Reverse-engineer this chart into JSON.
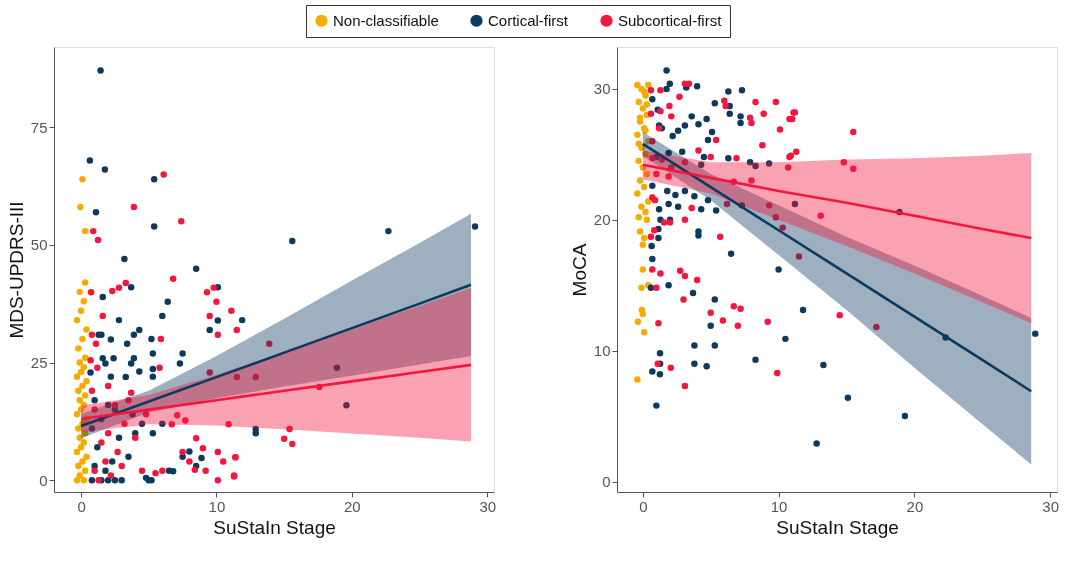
{
  "chart_data": [
    {
      "type": "scatter",
      "xlabel": "SuStaIn Stage",
      "ylabel": "MDS-UPDRS-III",
      "xlim": [
        -2,
        30.5
      ],
      "ylim": [
        -2.5,
        92
      ],
      "xticks": [
        0,
        10,
        20,
        30
      ],
      "yticks": [
        0,
        25,
        50,
        75
      ],
      "grid": false,
      "legend": "top",
      "marker": "circle",
      "series": [
        {
          "name": "Non-classifiable",
          "color": "#f7ab00",
          "x": [
            -0.3,
            0.2,
            -0.1,
            0.3,
            -0.2,
            0.1,
            0.4,
            -0.3,
            0.0,
            0.2,
            -0.1,
            0.3,
            -0.2,
            0.1,
            0.4,
            -0.3,
            0.0,
            0.2,
            -0.1,
            0.3,
            -0.2,
            0.1,
            0.4,
            -0.3,
            0.0,
            0.2,
            -0.1,
            0.3,
            -0.2,
            0.1,
            0.4,
            -0.3,
            0.0,
            0.2,
            -0.1,
            0.3,
            0.3,
            -0.05,
            0.1
          ],
          "values": [
            0,
            0,
            1,
            2,
            3,
            4,
            5,
            6,
            7,
            8,
            9,
            10,
            11,
            12,
            13,
            14,
            15,
            16,
            17,
            18,
            19,
            20,
            21,
            22,
            23,
            24,
            25,
            26,
            28,
            30,
            32,
            34,
            36,
            38,
            40,
            42,
            52.9,
            58,
            63.9
          ]
        },
        {
          "name": "Cortical-first",
          "color": "#0c3a5f",
          "x": [
            1.44,
            0.65,
            1.76,
            5.4,
            1.1,
            5.4,
            3.2,
            8.5,
            3.7,
            10.1,
            1.6,
            6.4,
            6.0,
            2.8,
            10.1,
            11.9,
            9.5,
            4.3,
            1.3,
            1.5,
            3.9,
            2.2,
            5.2,
            3.4,
            7.5,
            5.3,
            2.4,
            1.6,
            3.9,
            7.3,
            3.7,
            1.8,
            4.3,
            5.3,
            0.7,
            2.2,
            3.3,
            5.3,
            12.9,
            12.9,
            15.6,
            22.7,
            29.1,
            18.9,
            19.6,
            0.8,
            1.5,
            2.0,
            2.5,
            3.0,
            5.0,
            5.2,
            4.8,
            1.0,
            1.8,
            2.3,
            3.5,
            1.2,
            2.8,
            4.0,
            5.3,
            7.5,
            8.5,
            1.5,
            2.5,
            3.8,
            4.5,
            6.0,
            1.0,
            2.0,
            0.8,
            6.5,
            8.0,
            8.9,
            6.8
          ],
          "values": [
            87,
            67.9,
            66,
            63.9,
            56.9,
            53.9,
            47,
            44.9,
            41,
            41,
            38.9,
            37.9,
            34.9,
            34,
            33.9,
            34,
            31.9,
            31.9,
            30.9,
            30.9,
            30.9,
            29.9,
            30,
            29,
            26.9,
            26.9,
            25.9,
            25.9,
            25.9,
            24.8,
            24.8,
            24.8,
            23.1,
            23.6,
            22.9,
            22,
            21.9,
            22,
            10.9,
            10,
            50.8,
            52.9,
            53.9,
            23.9,
            15.9,
            0,
            0,
            0,
            0,
            0,
            0,
            0,
            0.5,
            3,
            2,
            4,
            5,
            7,
            9,
            10,
            10,
            5,
            3,
            13,
            15,
            14,
            12,
            12,
            17,
            16,
            11,
            2,
            6.1,
            4.7,
            1.9
          ]
        },
        {
          "name": "Subcortical-first",
          "color": "#f4163e",
          "x": [
            6.1,
            3.9,
            7.4,
            0.9,
            1.25,
            6.8,
            3.3,
            2.8,
            2.3,
            0.74,
            9.3,
            9.8,
            10.0,
            11.1,
            9.5,
            11.5,
            10.1,
            1.6,
            0.8,
            1.1,
            5.9,
            5.8,
            0.7,
            1.2,
            9.5,
            11.5,
            12.9,
            13.9,
            17.6,
            15.4,
            15.0,
            15.6,
            11.4,
            11.3,
            10.9,
            8.5,
            9.0,
            10.1,
            11.4,
            11.3,
            10.1,
            10.5,
            8.4,
            9.2,
            7.5,
            8.0,
            7.7,
            6.7,
            7.1,
            1.0,
            1.3,
            1.8,
            2.2,
            2.7,
            3.0,
            1.5,
            2.0,
            3.2,
            4.0,
            4.5,
            5.5,
            6.0,
            1.0,
            2.5,
            3.5,
            4.8,
            0.8,
            2.0,
            3.7
          ],
          "values": [
            64.9,
            58,
            55,
            52.9,
            51,
            42.8,
            41.9,
            40.9,
            40.2,
            39.9,
            39.9,
            40.9,
            37.9,
            36,
            34.9,
            31.9,
            30.9,
            34.9,
            30.9,
            29,
            30,
            23.9,
            25.5,
            23.9,
            22.9,
            21.9,
            21.9,
            29,
            19.8,
            10.9,
            8.8,
            7.7,
            4.9,
            0.8,
            11.9,
            8.9,
            6.8,
            6,
            4.9,
            1,
            0,
            4,
            2.2,
            2,
            6,
            4,
            12.7,
            11.9,
            13.8,
            2,
            0,
            4,
            1,
            6,
            3,
            8,
            10,
            12,
            9,
            2,
            1.5,
            2,
            15,
            16,
            17,
            14,
            19,
            20,
            18.6
          ]
        },
        {
          "type": "line",
          "marker": "none",
          "line_style": "solid",
          "color": "#0c3a5f",
          "x": [
            0,
            5,
            10,
            15,
            20,
            25,
            28.8
          ],
          "values": [
            11.5,
            16.7,
            21.9,
            27.1,
            32.3,
            37.5,
            41.5
          ],
          "lower": [
            8.9,
            14.4,
            17.4,
            19.9,
            22.2,
            24.6,
            26.4
          ],
          "upper": [
            14.1,
            19.0,
            26.4,
            34.3,
            42.4,
            50.4,
            56.6
          ]
        },
        {
          "type": "line",
          "marker": "none",
          "line_style": "solid",
          "color": "#f4163e",
          "x": [
            0,
            5,
            10,
            15,
            20,
            25,
            28.8
          ],
          "values": [
            13,
            15,
            17,
            19,
            21,
            23,
            24.5
          ],
          "lower": [
            10.2,
            11.9,
            11.6,
            10.8,
            9.9,
            9.0,
            8.2
          ],
          "upper": [
            15.8,
            18.1,
            22.4,
            27.2,
            32.1,
            37.0,
            40.8
          ]
        }
      ]
    },
    {
      "type": "scatter",
      "xlabel": "SuStaIn Stage",
      "ylabel": "MoCA",
      "xlim": [
        -1.9,
        30.5
      ],
      "ylim": [
        -0.8,
        33.2
      ],
      "xticks": [
        0,
        10,
        20,
        30
      ],
      "yticks": [
        0,
        10,
        20,
        30
      ],
      "grid": false,
      "marker": "circle",
      "series": [
        {
          "color": "#f7ab00",
          "x": [
            -0.4,
            -0.36,
            0.1,
            -0.07,
            -0.1,
            0.0,
            0.0,
            0.1,
            -0.2,
            0.3,
            -0.3,
            0.2,
            -0.1,
            0.4,
            -0.4,
            0.1,
            -0.2,
            0.3,
            0.0,
            -0.3,
            0.2,
            -0.1,
            0.4,
            -0.4,
            0.1,
            -0.2,
            0.3,
            0.0,
            -0.3,
            0.2,
            -0.1,
            0.4,
            -0.4,
            0.1,
            0.3,
            -0.2,
            0.2,
            -0.3,
            0.0,
            0.4
          ],
          "values": [
            7.8,
            12.2,
            11.4,
            13.1,
            14.8,
            16.2,
            18.1,
            18.6,
            19.1,
            20,
            20.2,
            20.6,
            21,
            21.4,
            22,
            22.5,
            23,
            23.5,
            24,
            24.5,
            25,
            25.5,
            26,
            26.5,
            27,
            27.5,
            28,
            28.5,
            29,
            29.5,
            30,
            30.3,
            30.3,
            29.8,
            28.8,
            27.8,
            26.8,
            25.8,
            12.8,
            15
          ]
        },
        {
          "color": "#0c3a5f",
          "x": [
            1.75,
            1.99,
            1.75,
            3.2,
            4.0,
            6.3,
            7.3,
            6.4,
            7.2,
            7.2,
            6.4,
            5.3,
            4.7,
            3.6,
            3.1,
            2.6,
            2.2,
            1.4,
            1.1,
            0.7,
            1.2,
            4.1,
            5.1,
            4.8,
            4.5,
            6.3,
            7.9,
            8.3,
            9.3,
            2.9,
            1.9,
            1.0,
            4.3,
            0.7,
            1.8,
            2.4,
            3.1,
            3.8,
            4.8,
            1.9,
            1.2,
            2.6,
            4.3,
            5.4,
            7.3,
            1.3,
            2.0,
            1.15,
            1.15,
            4.1,
            4.1,
            0.65,
            0.7,
            6.5,
            0.6,
            1.9,
            3.7,
            5.3,
            5.0,
            10.0,
            11.8,
            10.5,
            3.8,
            5.3,
            1.27,
            1.27,
            3.8,
            4.7,
            8.3,
            0.7,
            1.26,
            1.0,
            12.8,
            22.3,
            28.9,
            19.3,
            15.1,
            13.3,
            18.9,
            11.2
          ],
          "values": [
            31.4,
            30.4,
            30,
            30.1,
            30.2,
            29.8,
            29.9,
            28.7,
            27.9,
            27.4,
            28.1,
            28.9,
            27.7,
            27.9,
            27.2,
            26.8,
            26.4,
            27,
            28.4,
            29.2,
            27.2,
            27.3,
            26.7,
            26.1,
            24.8,
            24.7,
            24.4,
            24.1,
            24.3,
            25.2,
            25.1,
            24.8,
            24.2,
            22.6,
            22.2,
            21.9,
            22.2,
            21.8,
            21.5,
            21.2,
            20.8,
            21,
            20.8,
            20.7,
            21.1,
            20,
            20,
            19.3,
            18.6,
            19.1,
            18.8,
            18,
            17,
            17.4,
            14.8,
            15,
            14.4,
            13.9,
            11.9,
            16.2,
            13.1,
            10.9,
            10.4,
            10.4,
            9.8,
            9,
            9,
            8.8,
            9.3,
            8.4,
            8.2,
            5.8,
            2.9,
            11,
            11.3,
            5,
            6.4,
            8.9,
            20.6,
            21.2
          ]
        },
        {
          "color": "#f4163e",
          "x": [
            0.6,
            1.3,
            3.1,
            3.4,
            2.7,
            1.96,
            1.3,
            0.6,
            2.1,
            6.0,
            6.1,
            8.3,
            9.8,
            8.9,
            8.0,
            7.9,
            10.1,
            8.8,
            10.8,
            11.2,
            11.3,
            10.8,
            10.7,
            6.9,
            5.4,
            5.0,
            4.1,
            1.2,
            0.7,
            1.4,
            0.7,
            2.1,
            3.1,
            1.9,
            1.0,
            6.7,
            8.0,
            6.2,
            3.6,
            0.7,
            0.9,
            3.1,
            1.56,
            2.0,
            0.84,
            0.6,
            5.7,
            9.3,
            9.8,
            10.3,
            11.5,
            0.7,
            1.3,
            2.75,
            3.1,
            4.0,
            1.0,
            3.0,
            5.0,
            5.9,
            6.7,
            7.2,
            7.0,
            9.2,
            1.15,
            1.1,
            2.06,
            3.1,
            9.9,
            11.1,
            11.0,
            15.5,
            10.9,
            14.8,
            15.5,
            13.1,
            14.5,
            17.2
          ],
          "values": [
            29.9,
            29.9,
            30.4,
            30.4,
            29.4,
            28.7,
            28.3,
            28.1,
            27.9,
            29.1,
            28.7,
            29,
            29,
            28.1,
            27.4,
            27.8,
            26.9,
            25.7,
            27.7,
            28.2,
            25.2,
            24.8,
            24,
            24.7,
            26.1,
            24.8,
            25.3,
            27,
            26,
            24.6,
            24.7,
            24,
            24.4,
            23.3,
            23.5,
            22.9,
            23,
            21.2,
            20.9,
            21.7,
            21.5,
            20,
            19.8,
            19.8,
            19.2,
            18.7,
            18.7,
            21.1,
            20.2,
            19.4,
            17.2,
            16.2,
            15.9,
            16.1,
            15.7,
            15.4,
            14.8,
            13.9,
            12.9,
            12.3,
            13.4,
            13.2,
            11.9,
            12.2,
            12.1,
            9,
            8.7,
            7.3,
            8.3,
            28.2,
            27.7,
            26.7,
            24.9,
            24.4,
            23.9,
            20.3,
            12.7,
            11.8
          ]
        },
        {
          "type": "line",
          "marker": "none",
          "line_style": "solid",
          "color": "#0c3a5f",
          "x": [
            0,
            5,
            10,
            15,
            20,
            25,
            28.6
          ],
          "values": [
            25.8,
            22.5,
            19.2,
            15.9,
            12.6,
            9.3,
            6.9
          ],
          "lower": [
            24.9,
            21.5,
            17.3,
            13.1,
            8.7,
            4.4,
            1.3
          ],
          "upper": [
            26.7,
            23.5,
            21.1,
            18.7,
            16.5,
            14.2,
            12.5
          ]
        },
        {
          "type": "line",
          "marker": "none",
          "line_style": "solid",
          "color": "#f4163e",
          "x": [
            0,
            5,
            10,
            15,
            20,
            25,
            28.6
          ],
          "values": [
            24.2,
            23.2,
            22.2,
            21.3,
            20.3,
            19.3,
            18.6
          ],
          "lower": [
            23.1,
            22.0,
            20.0,
            18.0,
            15.9,
            13.7,
            12.1
          ],
          "upper": [
            25.3,
            24.4,
            24.4,
            24.6,
            24.7,
            24.9,
            25.1
          ]
        }
      ]
    }
  ]
}
